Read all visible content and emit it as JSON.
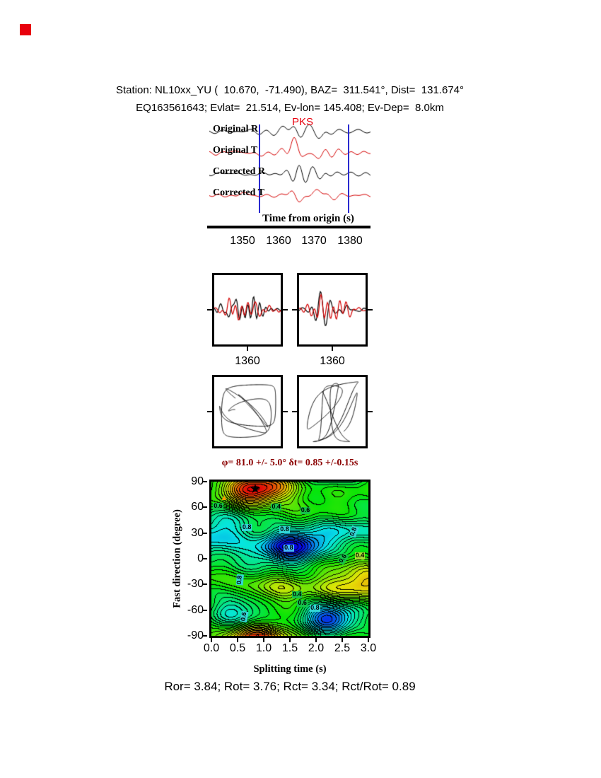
{
  "colors": {
    "trace_black": "#000000",
    "trace_red": "#d40000",
    "window_line_blue": "#2a2ad0",
    "phase_label_red": "#e8000d",
    "title_dark_red": "#8b0000",
    "marker_square_red": "#e8000d",
    "triangle_orange": "#ff9a00"
  },
  "icons": {
    "star": "★",
    "triangle": "▲"
  },
  "header": {
    "line1": "Station: NL10xx_YU (  10.670,  -71.490), BAZ=  311.541°, Dist=  131.674°",
    "line2": "EQ163561643; Evlat=  21.514, Ev-lon= 145.408; Ev-Dep=  8.0km"
  },
  "waveform_panel": {
    "phase_label": "PKS",
    "axis_label": "Time from origin (s)",
    "ticks": [
      "1350",
      "1360",
      "1370",
      "1380"
    ],
    "window": {
      "start_s": 1354.5,
      "end_s": 1379.5
    },
    "traces": [
      {
        "label": "Original R",
        "color": "#000000"
      },
      {
        "label": "Original T",
        "color": "#d40000"
      },
      {
        "label": "Corrected R",
        "color": "#000000"
      },
      {
        "label": "Corrected T",
        "color": "#d40000"
      }
    ]
  },
  "zoom_panels": {
    "left": {
      "tick": "1360"
    },
    "right": {
      "tick": "1360"
    }
  },
  "chart_data": {
    "type": "heatmap",
    "title": "φ= 81.0 +/- 5.0° δt= 0.85 +/-0.15s",
    "xlabel": "Splitting time (s)",
    "ylabel": "Fast direction (degree)",
    "xlim": [
      0,
      3
    ],
    "ylim": [
      -90,
      90
    ],
    "xticks": [
      "0.0",
      "0.5",
      "1.0",
      "1.5",
      "2.0",
      "2.5",
      "3.0"
    ],
    "yticks": [
      "90",
      "60",
      "30",
      "0",
      "-30",
      "-60",
      "-90"
    ],
    "grid": false,
    "legend": "none",
    "best_solution": {
      "phi_deg": 81.0,
      "phi_err_deg": 5.0,
      "dt_s": 0.85,
      "dt_err_s": 0.15
    },
    "star_marker": {
      "x": 0.85,
      "y": 81
    },
    "triangle_marker": {
      "x": 0.25,
      "y": 70
    },
    "contour_levels": [
      0.4,
      0.6,
      0.8
    ],
    "surface_features": [
      {
        "x": 0.85,
        "y": 81,
        "sx": 0.5,
        "sy": 13,
        "amp": 1.1
      },
      {
        "x": 1.55,
        "y": 14,
        "sx": 0.5,
        "sy": 15,
        "amp": -1.05
      },
      {
        "x": 2.25,
        "y": -68,
        "sx": 0.38,
        "sy": 13,
        "amp": -0.95
      },
      {
        "x": 0.12,
        "y": 25,
        "sx": 0.45,
        "sy": 26,
        "amp": -0.55
      },
      {
        "x": 2.75,
        "y": 30,
        "sx": 0.5,
        "sy": 11,
        "amp": -0.45
      },
      {
        "x": 2.8,
        "y": -27,
        "sx": 0.55,
        "sy": 17,
        "amp": 0.6
      },
      {
        "x": 1.3,
        "y": -38,
        "sx": 0.55,
        "sy": 11,
        "amp": 0.4
      },
      {
        "x": 0.45,
        "y": -57,
        "sx": 0.33,
        "sy": 16,
        "amp": -0.5
      },
      {
        "x": 0.05,
        "y": -20,
        "sx": 0.35,
        "sy": 15,
        "amp": 0.25
      }
    ],
    "contour_labels": [
      {
        "text": "0.6",
        "x": 0.03,
        "y": 61,
        "bg": "#15c24a",
        "rot": 0
      },
      {
        "text": "0.4",
        "x": 1.14,
        "y": 60,
        "bg": "#15c24a",
        "rot": 0
      },
      {
        "text": "0.6",
        "x": 1.7,
        "y": 56,
        "bg": "#15c24a",
        "rot": 0
      },
      {
        "text": "0.8",
        "x": 0.58,
        "y": 36,
        "bg": "#33d6d6",
        "rot": 0
      },
      {
        "text": "0.8",
        "x": 1.3,
        "y": 34,
        "bg": "#33d6d6",
        "rot": 0
      },
      {
        "text": "0.8",
        "x": 1.38,
        "y": 12,
        "bg": "#43b4ff",
        "rot": 0
      },
      {
        "text": "0.8",
        "x": 2.62,
        "y": 31,
        "bg": "#33d6d6",
        "rot": -70
      },
      {
        "text": "0.6",
        "x": 2.42,
        "y": 0,
        "bg": "#15c24a",
        "rot": -55
      },
      {
        "text": "0.4",
        "x": 2.74,
        "y": 3,
        "bg": "#aadd33",
        "rot": 0
      },
      {
        "text": "0.8",
        "x": 0.44,
        "y": -25,
        "bg": "#33d6d6",
        "rot": -85
      },
      {
        "text": "0.4",
        "x": 1.54,
        "y": -42,
        "bg": "#15c24a",
        "rot": 0
      },
      {
        "text": "0.6",
        "x": 1.64,
        "y": -52,
        "bg": "#15c24a",
        "rot": 0
      },
      {
        "text": "0.8",
        "x": 1.88,
        "y": -58,
        "bg": "#33d6d6",
        "rot": 0
      },
      {
        "text": "0.6",
        "x": 0.53,
        "y": -68,
        "bg": "#33d6d6",
        "rot": -80
      }
    ]
  },
  "footer": {
    "stats": "Ror= 3.84; Rot= 3.76; Rct= 3.34; Rct/Rot= 0.89"
  }
}
